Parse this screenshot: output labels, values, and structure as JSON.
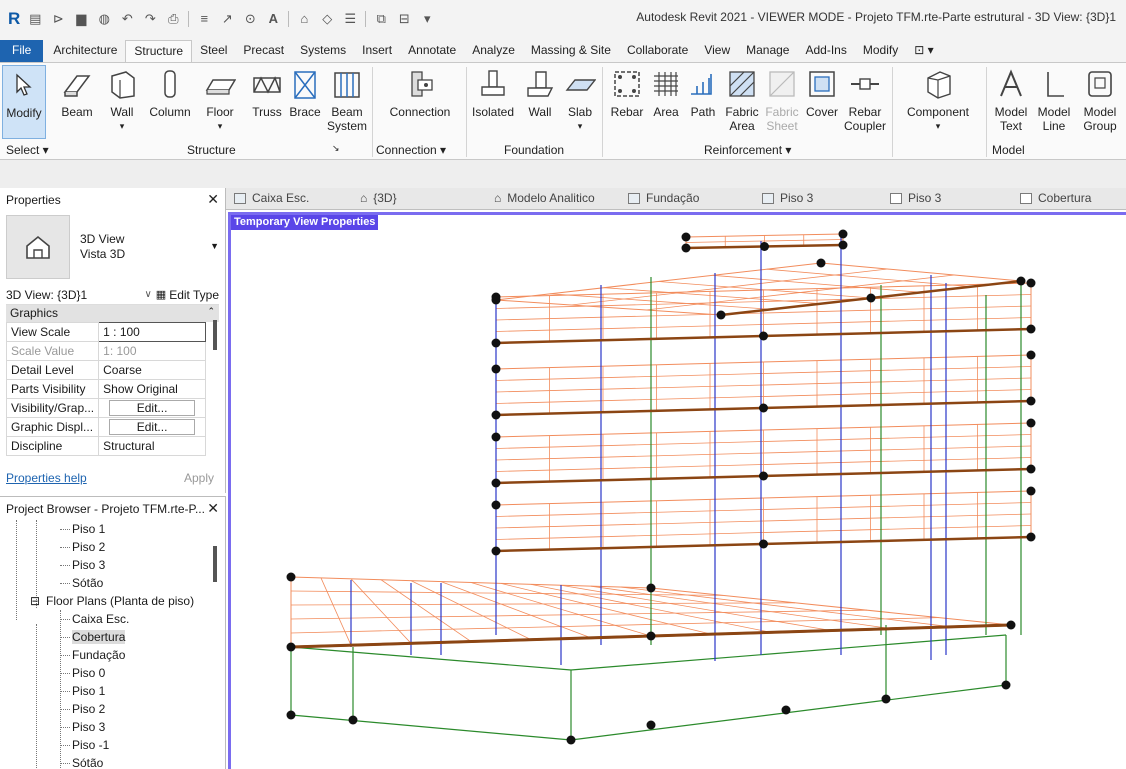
{
  "app": {
    "title": "Autodesk Revit 2021 - VIEWER MODE - Projeto TFM.rte-Parte estrutural - 3D View: {3D}1"
  },
  "ribbon_tabs": [
    "Architecture",
    "Structure",
    "Steel",
    "Precast",
    "Systems",
    "Insert",
    "Annotate",
    "Analyze",
    "Massing & Site",
    "Collaborate",
    "View",
    "Manage",
    "Add-Ins",
    "Modify"
  ],
  "file_tab": "File",
  "active_tab": "Structure",
  "ribbon": {
    "modify": "Modify",
    "select_panel": "Select ▾",
    "structure": {
      "beam": "Beam",
      "wall": "Wall",
      "column": "Column",
      "floor": "Floor",
      "truss": "Truss",
      "brace": "Brace",
      "beam_system_1": "Beam",
      "beam_system_2": "System",
      "panel": "Structure"
    },
    "connection": {
      "label": "Connection",
      "panel": "Connection ▾"
    },
    "foundation": {
      "isolated": "Isolated",
      "wall": "Wall",
      "slab": "Slab",
      "panel": "Foundation"
    },
    "reinforcement": {
      "rebar": "Rebar",
      "area": "Area",
      "path": "Path",
      "fabric_area_1": "Fabric",
      "fabric_area_2": "Area",
      "fabric_sheet_1": "Fabric",
      "fabric_sheet_2": "Sheet",
      "cover": "Cover",
      "rebar_coupler_1": "Rebar",
      "rebar_coupler_2": "Coupler",
      "panel": "Reinforcement ▾"
    },
    "component": {
      "label": "Component"
    },
    "model": {
      "text_1": "Model",
      "text_2": "Text",
      "line_1": "Model",
      "line_2": "Line",
      "group_1": "Model",
      "group_2": "Group",
      "panel": "Model"
    }
  },
  "properties": {
    "title": "Properties",
    "type_name_1": "3D View",
    "type_name_2": "Vista 3D",
    "selector": "3D View: {3D}1",
    "edit_type": "Edit Type",
    "group": "Graphics",
    "rows": [
      {
        "key": "View Scale",
        "value": "1 : 100"
      },
      {
        "key": "Scale Value",
        "value": "1: 100"
      },
      {
        "key": "Detail Level",
        "value": "Coarse"
      },
      {
        "key": "Parts Visibility",
        "value": "Show Original"
      },
      {
        "key": "Visibility/Grap...",
        "value": "Edit..."
      },
      {
        "key": "Graphic Displ...",
        "value": "Edit..."
      },
      {
        "key": "Discipline",
        "value": "Structural"
      }
    ],
    "help": "Properties help",
    "apply": "Apply"
  },
  "browser": {
    "title": "Project Browser - Projeto TFM.rte-P...",
    "items": [
      "Piso 1",
      "Piso 2",
      "Piso 3",
      "Sótão",
      "Floor Plans (Planta de piso)",
      "Caixa Esc.",
      "Cobertura",
      "Fundação",
      "Piso 0",
      "Piso 1",
      "Piso 2",
      "Piso 3",
      "Piso -1",
      "Sótão"
    ]
  },
  "view_tabs": [
    "Caixa Esc.",
    "{3D}",
    "Modelo Analitico",
    "Fundação",
    "Piso 3",
    "Piso 3",
    "Cobertura"
  ],
  "viewport": {
    "label": "Temporary View Properties"
  },
  "colors": {
    "accent": "#1e64b0",
    "viewport_border": "#7a6cf0",
    "beam": "#8b4513",
    "grid": "#f28c5c",
    "column_blue": "#2a35c8",
    "column_green": "#2b8a2b"
  }
}
